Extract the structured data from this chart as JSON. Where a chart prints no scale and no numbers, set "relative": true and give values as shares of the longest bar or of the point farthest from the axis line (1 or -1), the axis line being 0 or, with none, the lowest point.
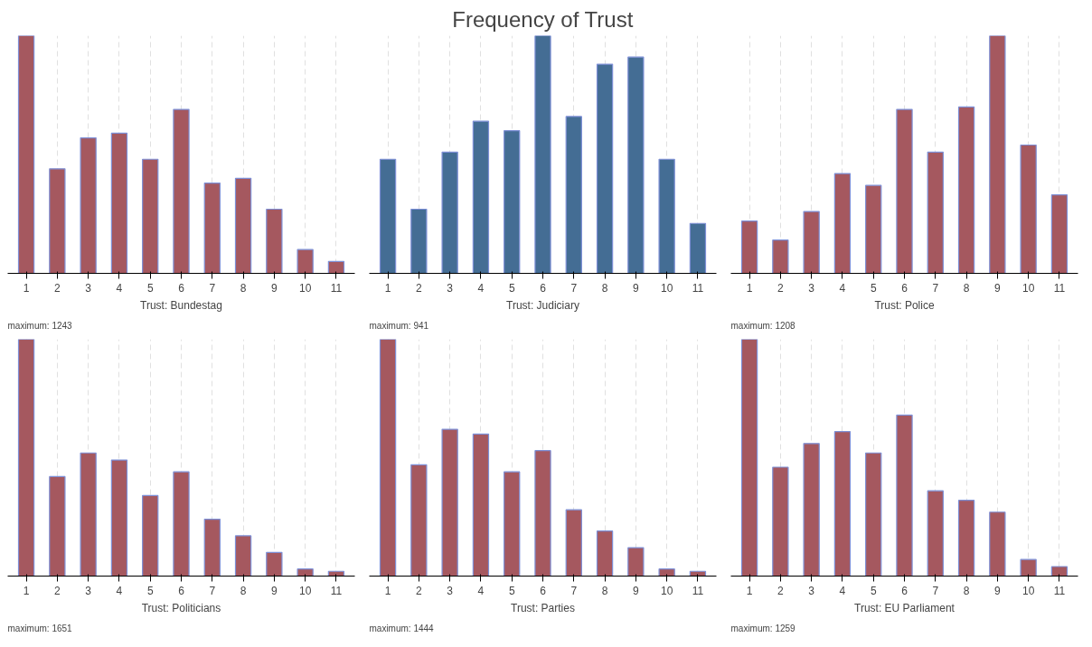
{
  "chart_data": [
    {
      "type": "bar",
      "relative": true,
      "grid": "x",
      "xlabel": "Trust: Bundestag",
      "annotations": [
        "maximum: 1243"
      ],
      "categories": [
        "1",
        "2",
        "3",
        "4",
        "5",
        "6",
        "7",
        "8",
        "9",
        "10",
        "11"
      ],
      "color": "#a5585f",
      "values": [
        1,
        0.44,
        0.57,
        0.59,
        0.48,
        0.69,
        0.38,
        0.4,
        0.27,
        0.1,
        0.05
      ]
    },
    {
      "type": "bar",
      "title": "Frequency of Trust",
      "relative": true,
      "grid": "x",
      "xlabel": "Trust: Judiciary",
      "annotations": [
        "maximum: 941"
      ],
      "categories": [
        "1",
        "2",
        "3",
        "4",
        "5",
        "6",
        "7",
        "8",
        "9",
        "10",
        "11"
      ],
      "color": "#446d94",
      "values": [
        0.48,
        0.27,
        0.51,
        0.64,
        0.6,
        1,
        0.66,
        0.88,
        0.91,
        0.48,
        0.21
      ]
    },
    {
      "type": "bar",
      "relative": true,
      "grid": "x",
      "xlabel": "Trust: Police",
      "annotations": [
        "maximum: 1208"
      ],
      "categories": [
        "1",
        "2",
        "3",
        "4",
        "5",
        "6",
        "7",
        "8",
        "9",
        "10",
        "11"
      ],
      "color": "#a5585f",
      "values": [
        0.22,
        0.14,
        0.26,
        0.42,
        0.37,
        0.69,
        0.51,
        0.7,
        1,
        0.54,
        0.33
      ]
    },
    {
      "type": "bar",
      "relative": true,
      "grid": "x",
      "xlabel": "Trust: Politicians",
      "annotations": [
        "maximum: 1651"
      ],
      "categories": [
        "1",
        "2",
        "3",
        "4",
        "5",
        "6",
        "7",
        "8",
        "9",
        "10",
        "11"
      ],
      "color": "#a5585f",
      "values": [
        1,
        0.42,
        0.52,
        0.49,
        0.34,
        0.44,
        0.24,
        0.17,
        0.1,
        0.03,
        0.02
      ]
    },
    {
      "type": "bar",
      "relative": true,
      "grid": "x",
      "xlabel": "Trust: Parties",
      "annotations": [
        "maximum: 1444"
      ],
      "categories": [
        "1",
        "2",
        "3",
        "4",
        "5",
        "6",
        "7",
        "8",
        "9",
        "10",
        "11"
      ],
      "color": "#a5585f",
      "values": [
        1,
        0.47,
        0.62,
        0.6,
        0.44,
        0.53,
        0.28,
        0.19,
        0.12,
        0.03,
        0.02
      ]
    },
    {
      "type": "bar",
      "relative": true,
      "grid": "x",
      "xlabel": "Trust: EU Parliament",
      "annotations": [
        "maximum: 1259"
      ],
      "categories": [
        "1",
        "2",
        "3",
        "4",
        "5",
        "6",
        "7",
        "8",
        "9",
        "10",
        "11"
      ],
      "color": "#a5585f",
      "values": [
        1,
        0.46,
        0.56,
        0.61,
        0.52,
        0.68,
        0.36,
        0.32,
        0.27,
        0.07,
        0.04
      ]
    }
  ]
}
